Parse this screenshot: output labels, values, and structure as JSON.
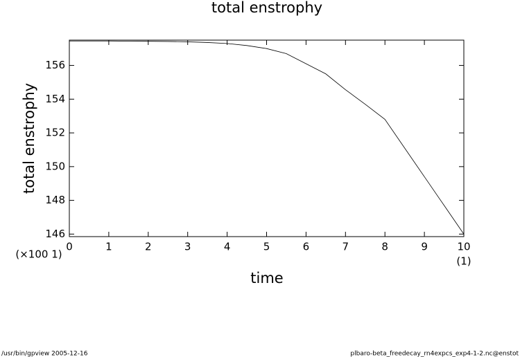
{
  "chart_data": {
    "type": "line",
    "title": "total enstrophy",
    "x_label": "time",
    "y_label": "total enstrophy",
    "x_scale_label": "(×100 1)",
    "x_unit_label": "(1)",
    "x": [
      0,
      0.5,
      1,
      1.5,
      2,
      2.5,
      3,
      3.5,
      4,
      4.5,
      5,
      5.5,
      6,
      6.5,
      7,
      7.5,
      8,
      8.5,
      9,
      9.5,
      10
    ],
    "series": [
      {
        "color": "#000000",
        "values": [
          157.45,
          157.45,
          157.45,
          157.44,
          157.43,
          157.42,
          157.4,
          157.36,
          157.3,
          157.18,
          157.0,
          156.7,
          156.1,
          155.5,
          154.56,
          153.7,
          152.8,
          151.1,
          149.4,
          147.7,
          146.0
        ]
      }
    ],
    "xlim": [
      0,
      10
    ],
    "ylim": [
      145.85,
      157.5
    ],
    "xticks": [
      0,
      1,
      2,
      3,
      4,
      5,
      6,
      7,
      8,
      9,
      10
    ],
    "yticks": [
      146,
      148,
      150,
      152,
      154,
      156
    ],
    "footer_left": "/usr/bin/gpview  2005-12-16",
    "footer_right": "plbaro-beta_freedecay_rn4expcs_exp4-1-2.nc@enstot"
  }
}
